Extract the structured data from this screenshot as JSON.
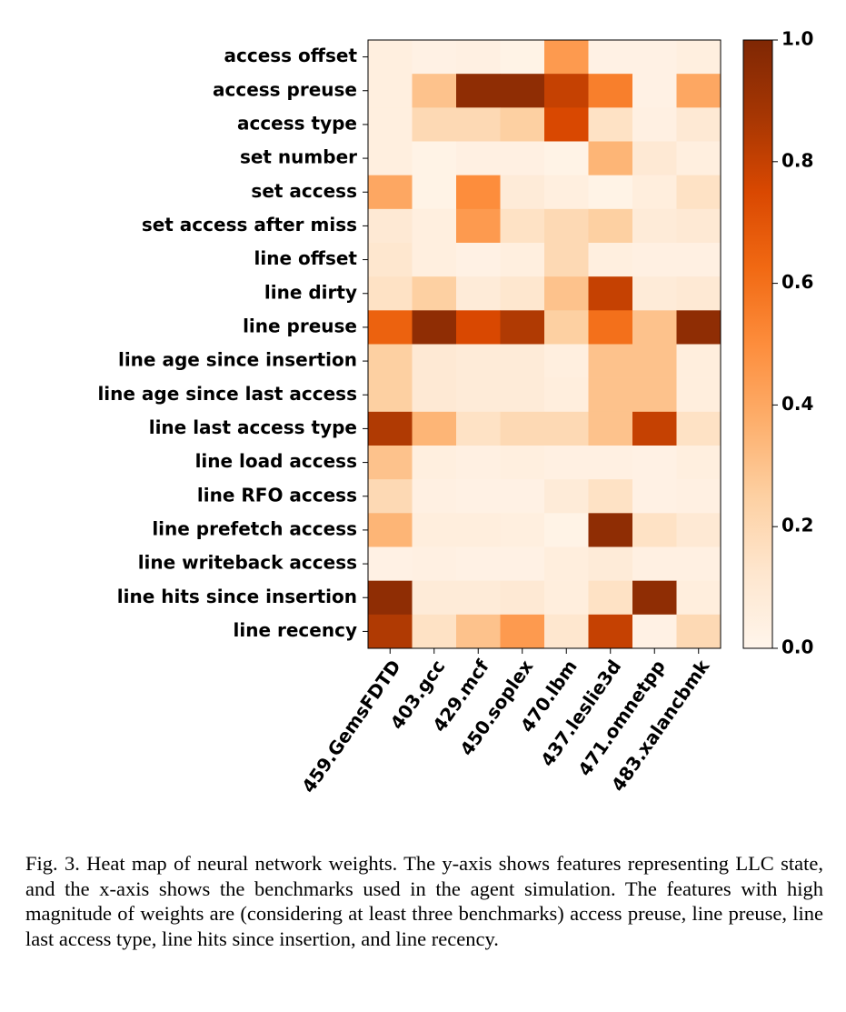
{
  "chart_data": {
    "type": "heatmap",
    "x_categories": [
      "459.GemsFDTD",
      "403.gcc",
      "429.mcf",
      "450.soplex",
      "470.lbm",
      "437.leslie3d",
      "471.omnetpp",
      "483.xalancbmk"
    ],
    "y_categories": [
      "access offset",
      "access preuse",
      "access type",
      "set number",
      "set access",
      "set access after miss",
      "line offset",
      "line dirty",
      "line preuse",
      "line age since insertion",
      "line age since last access",
      "line last access type",
      "line load access",
      "line RFO access",
      "line prefetch access",
      "line writeback access",
      "line hits since insertion",
      "line recency"
    ],
    "values": [
      [
        0.05,
        0.03,
        0.04,
        0.02,
        0.45,
        0.03,
        0.03,
        0.05
      ],
      [
        0.05,
        0.3,
        0.95,
        0.95,
        0.8,
        0.55,
        0.03,
        0.4
      ],
      [
        0.05,
        0.2,
        0.2,
        0.25,
        0.75,
        0.15,
        0.04,
        0.1
      ],
      [
        0.05,
        0.02,
        0.04,
        0.04,
        0.02,
        0.35,
        0.1,
        0.05
      ],
      [
        0.4,
        0.02,
        0.5,
        0.08,
        0.05,
        0.02,
        0.06,
        0.15
      ],
      [
        0.1,
        0.05,
        0.45,
        0.15,
        0.2,
        0.25,
        0.08,
        0.1
      ],
      [
        0.12,
        0.05,
        0.03,
        0.05,
        0.2,
        0.05,
        0.04,
        0.04
      ],
      [
        0.15,
        0.25,
        0.08,
        0.12,
        0.3,
        0.8,
        0.08,
        0.1
      ],
      [
        0.65,
        0.95,
        0.75,
        0.85,
        0.25,
        0.6,
        0.3,
        0.95
      ],
      [
        0.25,
        0.1,
        0.08,
        0.08,
        0.05,
        0.3,
        0.3,
        0.06
      ],
      [
        0.25,
        0.1,
        0.08,
        0.08,
        0.06,
        0.3,
        0.3,
        0.06
      ],
      [
        0.85,
        0.35,
        0.15,
        0.2,
        0.2,
        0.3,
        0.8,
        0.15
      ],
      [
        0.3,
        0.05,
        0.04,
        0.05,
        0.04,
        0.04,
        0.03,
        0.05
      ],
      [
        0.2,
        0.04,
        0.03,
        0.03,
        0.08,
        0.15,
        0.03,
        0.04
      ],
      [
        0.35,
        0.06,
        0.06,
        0.05,
        0.02,
        0.95,
        0.15,
        0.1
      ],
      [
        0.03,
        0.04,
        0.03,
        0.03,
        0.06,
        0.08,
        0.04,
        0.04
      ],
      [
        0.95,
        0.08,
        0.08,
        0.1,
        0.06,
        0.15,
        0.95,
        0.06
      ],
      [
        0.85,
        0.15,
        0.3,
        0.45,
        0.12,
        0.8,
        0.03,
        0.2
      ]
    ],
    "colormap": "Oranges",
    "clim": [
      0,
      1
    ],
    "cticks": [
      {
        "value": 0,
        "label": "0.0"
      },
      0.2,
      0.4,
      0.6,
      0.8,
      {
        "value": 1,
        "label": "1.0"
      }
    ],
    "caption": "Fig. 3.  Heat map of neural network weights. The y-axis shows features representing LLC state, and the x-axis shows the benchmarks used in the agent simulation. The features with high magnitude of weights are (considering at least three benchmarks) access preuse, line preuse, line last access type, line hits since insertion, and line recency."
  }
}
